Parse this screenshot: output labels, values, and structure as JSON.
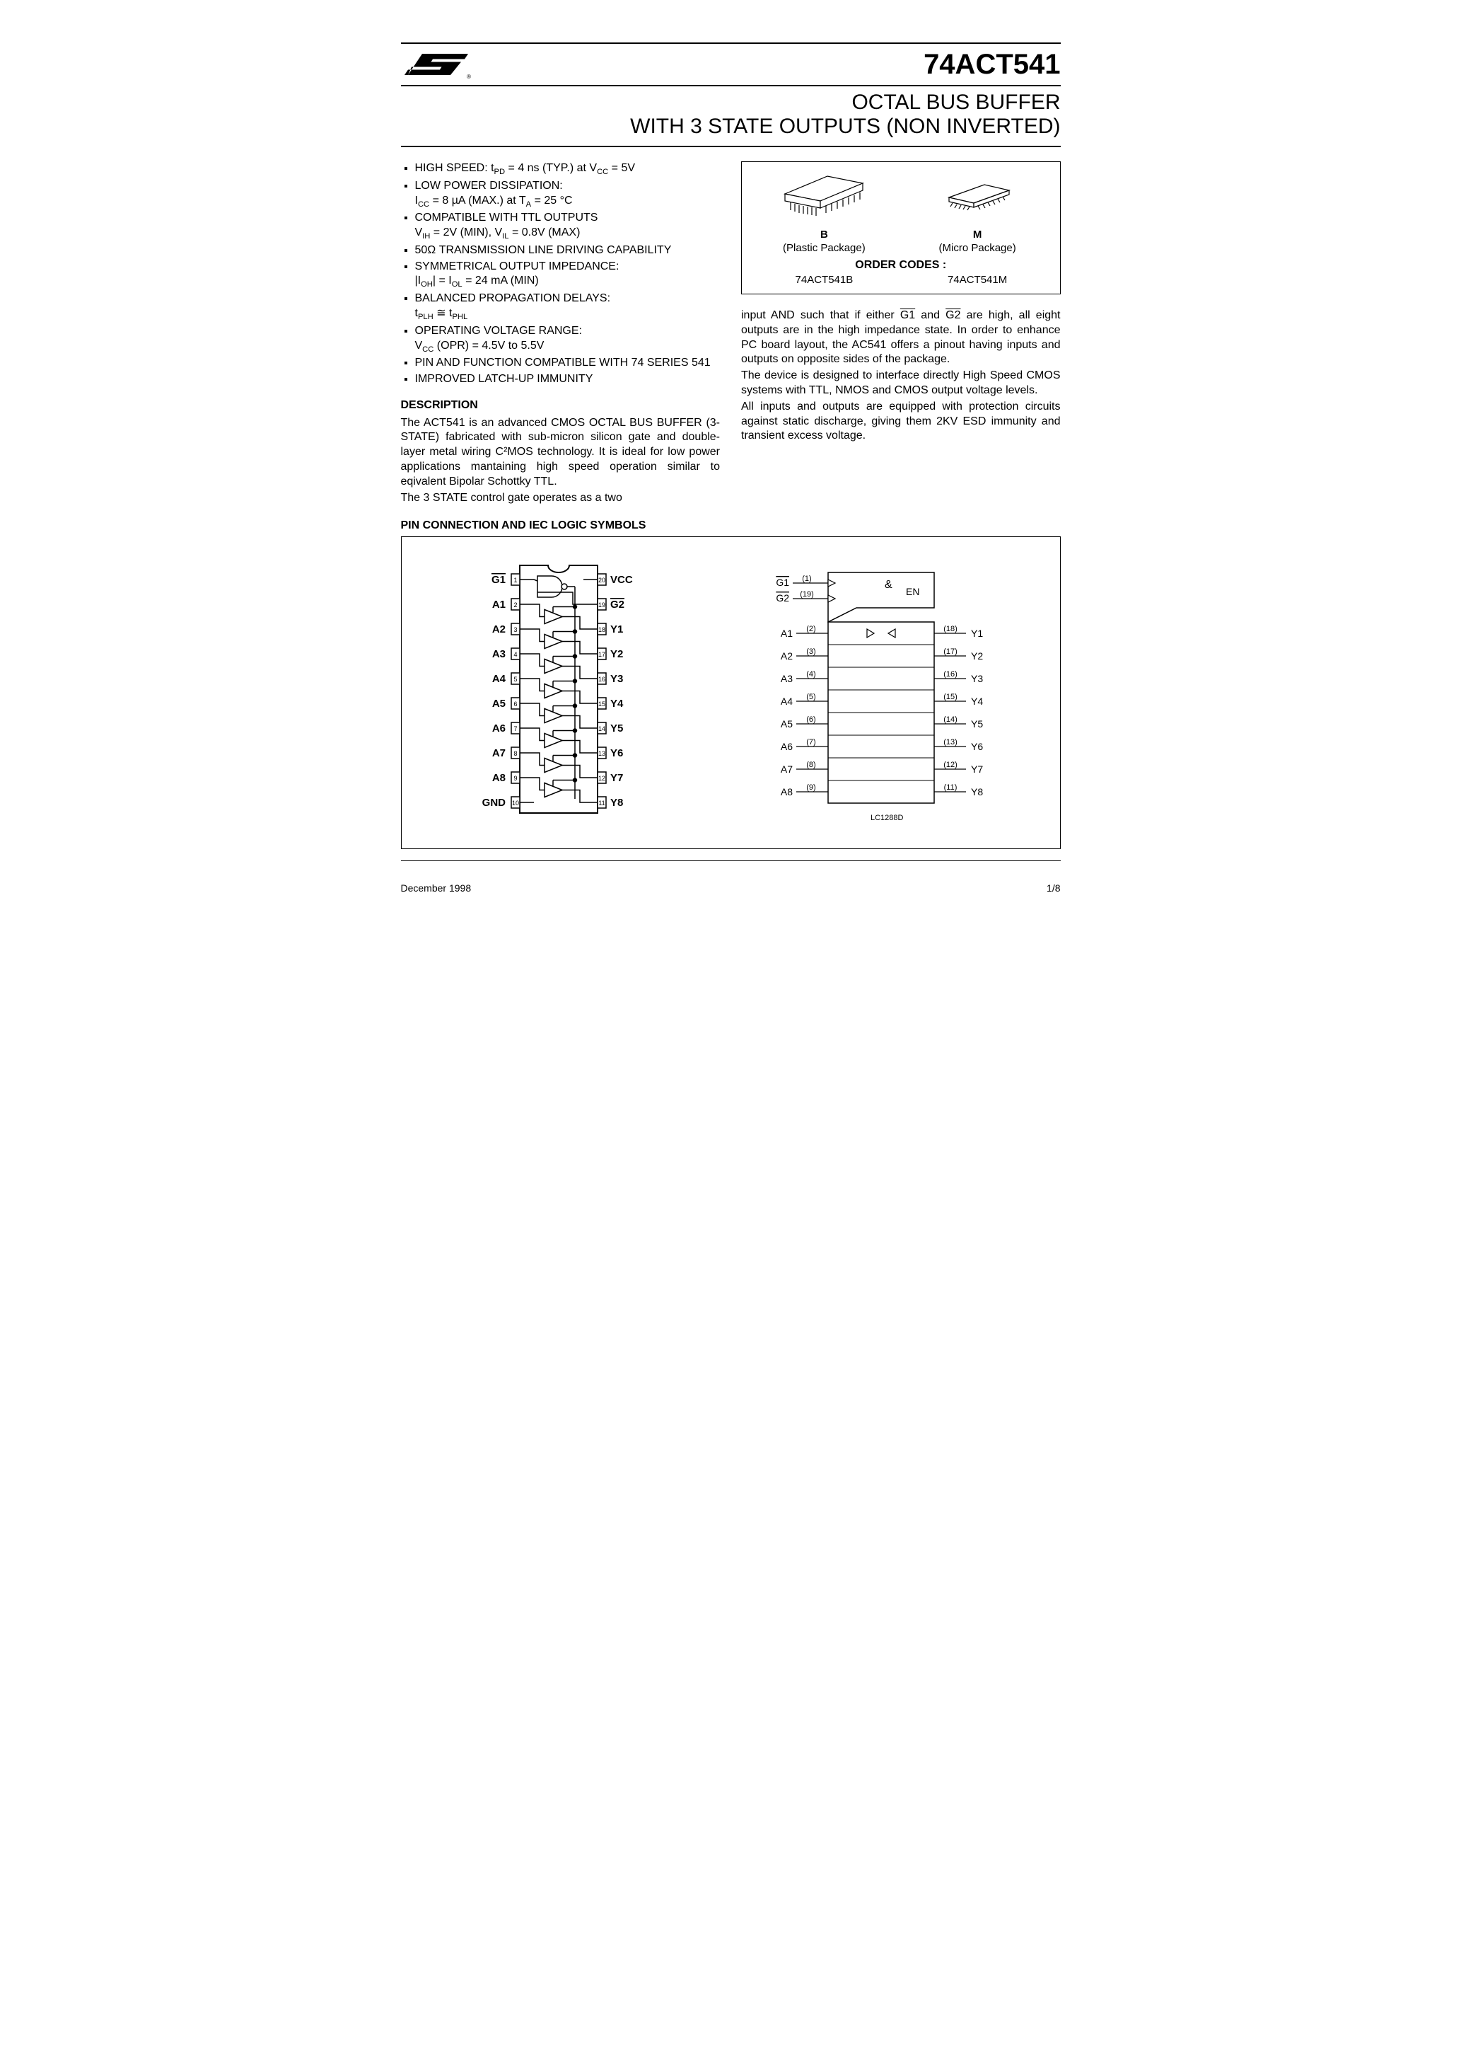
{
  "part_number": "74ACT541",
  "title_line1": "OCTAL BUS BUFFER",
  "title_line2": "WITH 3 STATE OUTPUTS (NON INVERTED)",
  "features": [
    {
      "main": "HIGH SPEED: t",
      "sub1": "PD",
      "mid": " = 4 ns (TYP.) at V",
      "sub2": "CC",
      "tail": " = 5V"
    },
    {
      "main": "LOW POWER DISSIPATION:",
      "line2_pre": "I",
      "line2_sub1": "CC",
      "line2_mid": " = 8 µA (MAX.) at T",
      "line2_sub2": "A",
      "line2_tail": " = 25 °C"
    },
    {
      "main": "COMPATIBLE WITH TTL OUTPUTS",
      "line2_pre": "V",
      "line2_sub1": "IH",
      "line2_mid": " = 2V (MIN), V",
      "line2_sub2": "IL",
      "line2_tail": " = 0.8V (MAX)"
    },
    {
      "main": "50Ω TRANSMISSION LINE DRIVING CAPABILITY"
    },
    {
      "main": "SYMMETRICAL OUTPUT IMPEDANCE:",
      "line2_pre": "|I",
      "line2_sub1": "OH",
      "line2_mid": "| = I",
      "line2_sub2": "OL",
      "line2_tail": " = 24 mA (MIN)"
    },
    {
      "main": "BALANCED PROPAGATION DELAYS:",
      "line2_pre": "t",
      "line2_sub1": "PLH",
      "line2_mid": " ≅ t",
      "line2_sub2": "PHL",
      "line2_tail": ""
    },
    {
      "main": "OPERATING VOLTAGE RANGE:",
      "line2_pre": "V",
      "line2_sub1": "CC",
      "line2_mid": " (OPR) = 4.5V to 5.5V",
      "line2_sub2": "",
      "line2_tail": ""
    },
    {
      "main": "PIN AND FUNCTION COMPATIBLE WITH 74 SERIES 541"
    },
    {
      "main": "IMPROVED LATCH-UP IMMUNITY"
    }
  ],
  "desc_heading": "DESCRIPTION",
  "desc_p1": "The ACT541 is an advanced CMOS OCTAL BUS BUFFER (3-STATE) fabricated with sub-micron silicon gate and double-layer metal wiring C²MOS technology. It is ideal for low power applications mantaining high speed operation similar to eqivalent Bipolar Schottky TTL.",
  "desc_p2": "The 3 STATE control gate operates as a two",
  "right_p1a": "input AND such that if either ",
  "right_p1b": " and ",
  "right_p1c": " are high, all eight outputs are in the high impedance state. In order to enhance PC board layout, the AC541 offers a pinout having inputs and outputs on opposite sides of the package.",
  "right_p2": "The device is designed to interface directly High Speed CMOS systems with TTL, NMOS and CMOS output voltage levels.",
  "right_p3": "All inputs and outputs are equipped with protection circuits against static discharge, giving them 2KV ESD immunity and transient excess voltage.",
  "packages": {
    "b_label": "B",
    "b_desc": "(Plastic Package)",
    "m_label": "M",
    "m_desc": "(Micro Package)",
    "order_heading": "ORDER CODES :",
    "code_b": "74ACT541B",
    "code_m": "74ACT541M"
  },
  "pin_heading": "PIN CONNECTION AND IEC LOGIC SYMBOLS",
  "pinout": {
    "left": [
      {
        "label": "G1",
        "pin": "1",
        "overline": true
      },
      {
        "label": "A1",
        "pin": "2"
      },
      {
        "label": "A2",
        "pin": "3"
      },
      {
        "label": "A3",
        "pin": "4"
      },
      {
        "label": "A4",
        "pin": "5"
      },
      {
        "label": "A5",
        "pin": "6"
      },
      {
        "label": "A6",
        "pin": "7"
      },
      {
        "label": "A7",
        "pin": "8"
      },
      {
        "label": "A8",
        "pin": "9"
      },
      {
        "label": "GND",
        "pin": "10"
      }
    ],
    "right": [
      {
        "label": "VCC",
        "pin": "20"
      },
      {
        "label": "G2",
        "pin": "19",
        "overline": true
      },
      {
        "label": "Y1",
        "pin": "18"
      },
      {
        "label": "Y2",
        "pin": "17"
      },
      {
        "label": "Y3",
        "pin": "16"
      },
      {
        "label": "Y4",
        "pin": "15"
      },
      {
        "label": "Y5",
        "pin": "14"
      },
      {
        "label": "Y6",
        "pin": "13"
      },
      {
        "label": "Y7",
        "pin": "12"
      },
      {
        "label": "Y8",
        "pin": "11"
      }
    ]
  },
  "iec": {
    "en_label": "EN",
    "amp_label": "&",
    "ctrl": [
      {
        "name": "G1",
        "pin": "(1)",
        "overline": true
      },
      {
        "name": "G2",
        "pin": "(19)",
        "overline": true
      }
    ],
    "io": [
      {
        "in": "A1",
        "pin_in": "(2)",
        "out": "Y1",
        "pin_out": "(18)"
      },
      {
        "in": "A2",
        "pin_in": "(3)",
        "out": "Y2",
        "pin_out": "(17)"
      },
      {
        "in": "A3",
        "pin_in": "(4)",
        "out": "Y3",
        "pin_out": "(16)"
      },
      {
        "in": "A4",
        "pin_in": "(5)",
        "out": "Y4",
        "pin_out": "(15)"
      },
      {
        "in": "A5",
        "pin_in": "(6)",
        "out": "Y5",
        "pin_out": "(14)"
      },
      {
        "in": "A6",
        "pin_in": "(7)",
        "out": "Y6",
        "pin_out": "(13)"
      },
      {
        "in": "A7",
        "pin_in": "(8)",
        "out": "Y7",
        "pin_out": "(12)"
      },
      {
        "in": "A8",
        "pin_in": "(9)",
        "out": "Y8",
        "pin_out": "(11)"
      }
    ],
    "footer": "LC1288D"
  },
  "footer_date": "December 1998",
  "footer_page": "1/8",
  "colors": {
    "text": "#000000",
    "bg": "#ffffff",
    "line": "#000000"
  }
}
